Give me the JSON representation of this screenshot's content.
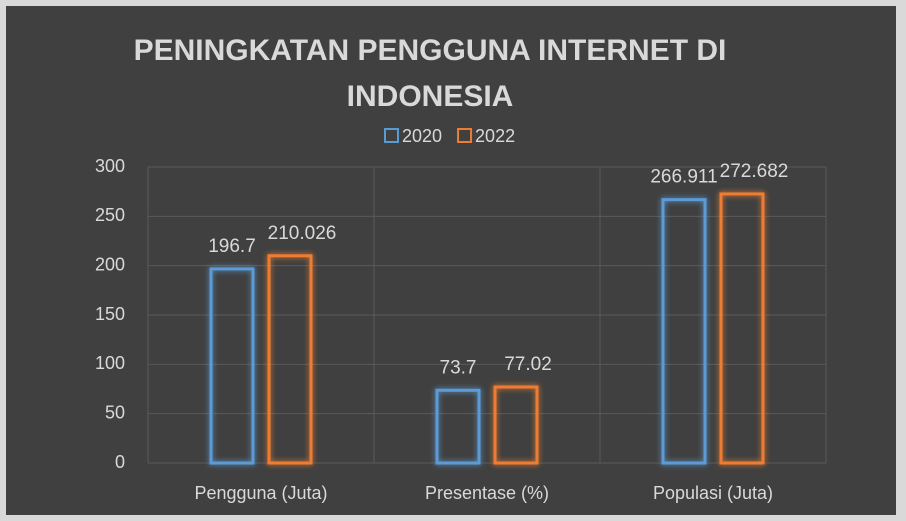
{
  "chart_data": {
    "type": "bar",
    "title": "PENINGKATAN PENGGUNA INTERNET DI INDONESIA",
    "categories": [
      "Pengguna (Juta)",
      "Presentase (%)",
      "Populasi (Juta)"
    ],
    "series": [
      {
        "name": "2020",
        "color": "#5b9bd5",
        "values": [
          196.7,
          73.7,
          266.911
        ]
      },
      {
        "name": "2022",
        "color": "#ed7d31",
        "values": [
          210.026,
          77.02,
          272.682
        ]
      }
    ],
    "ylim": [
      0,
      300
    ],
    "yticks": [
      0,
      50,
      100,
      150,
      200,
      250,
      300
    ],
    "grid": true,
    "legend": "top"
  }
}
